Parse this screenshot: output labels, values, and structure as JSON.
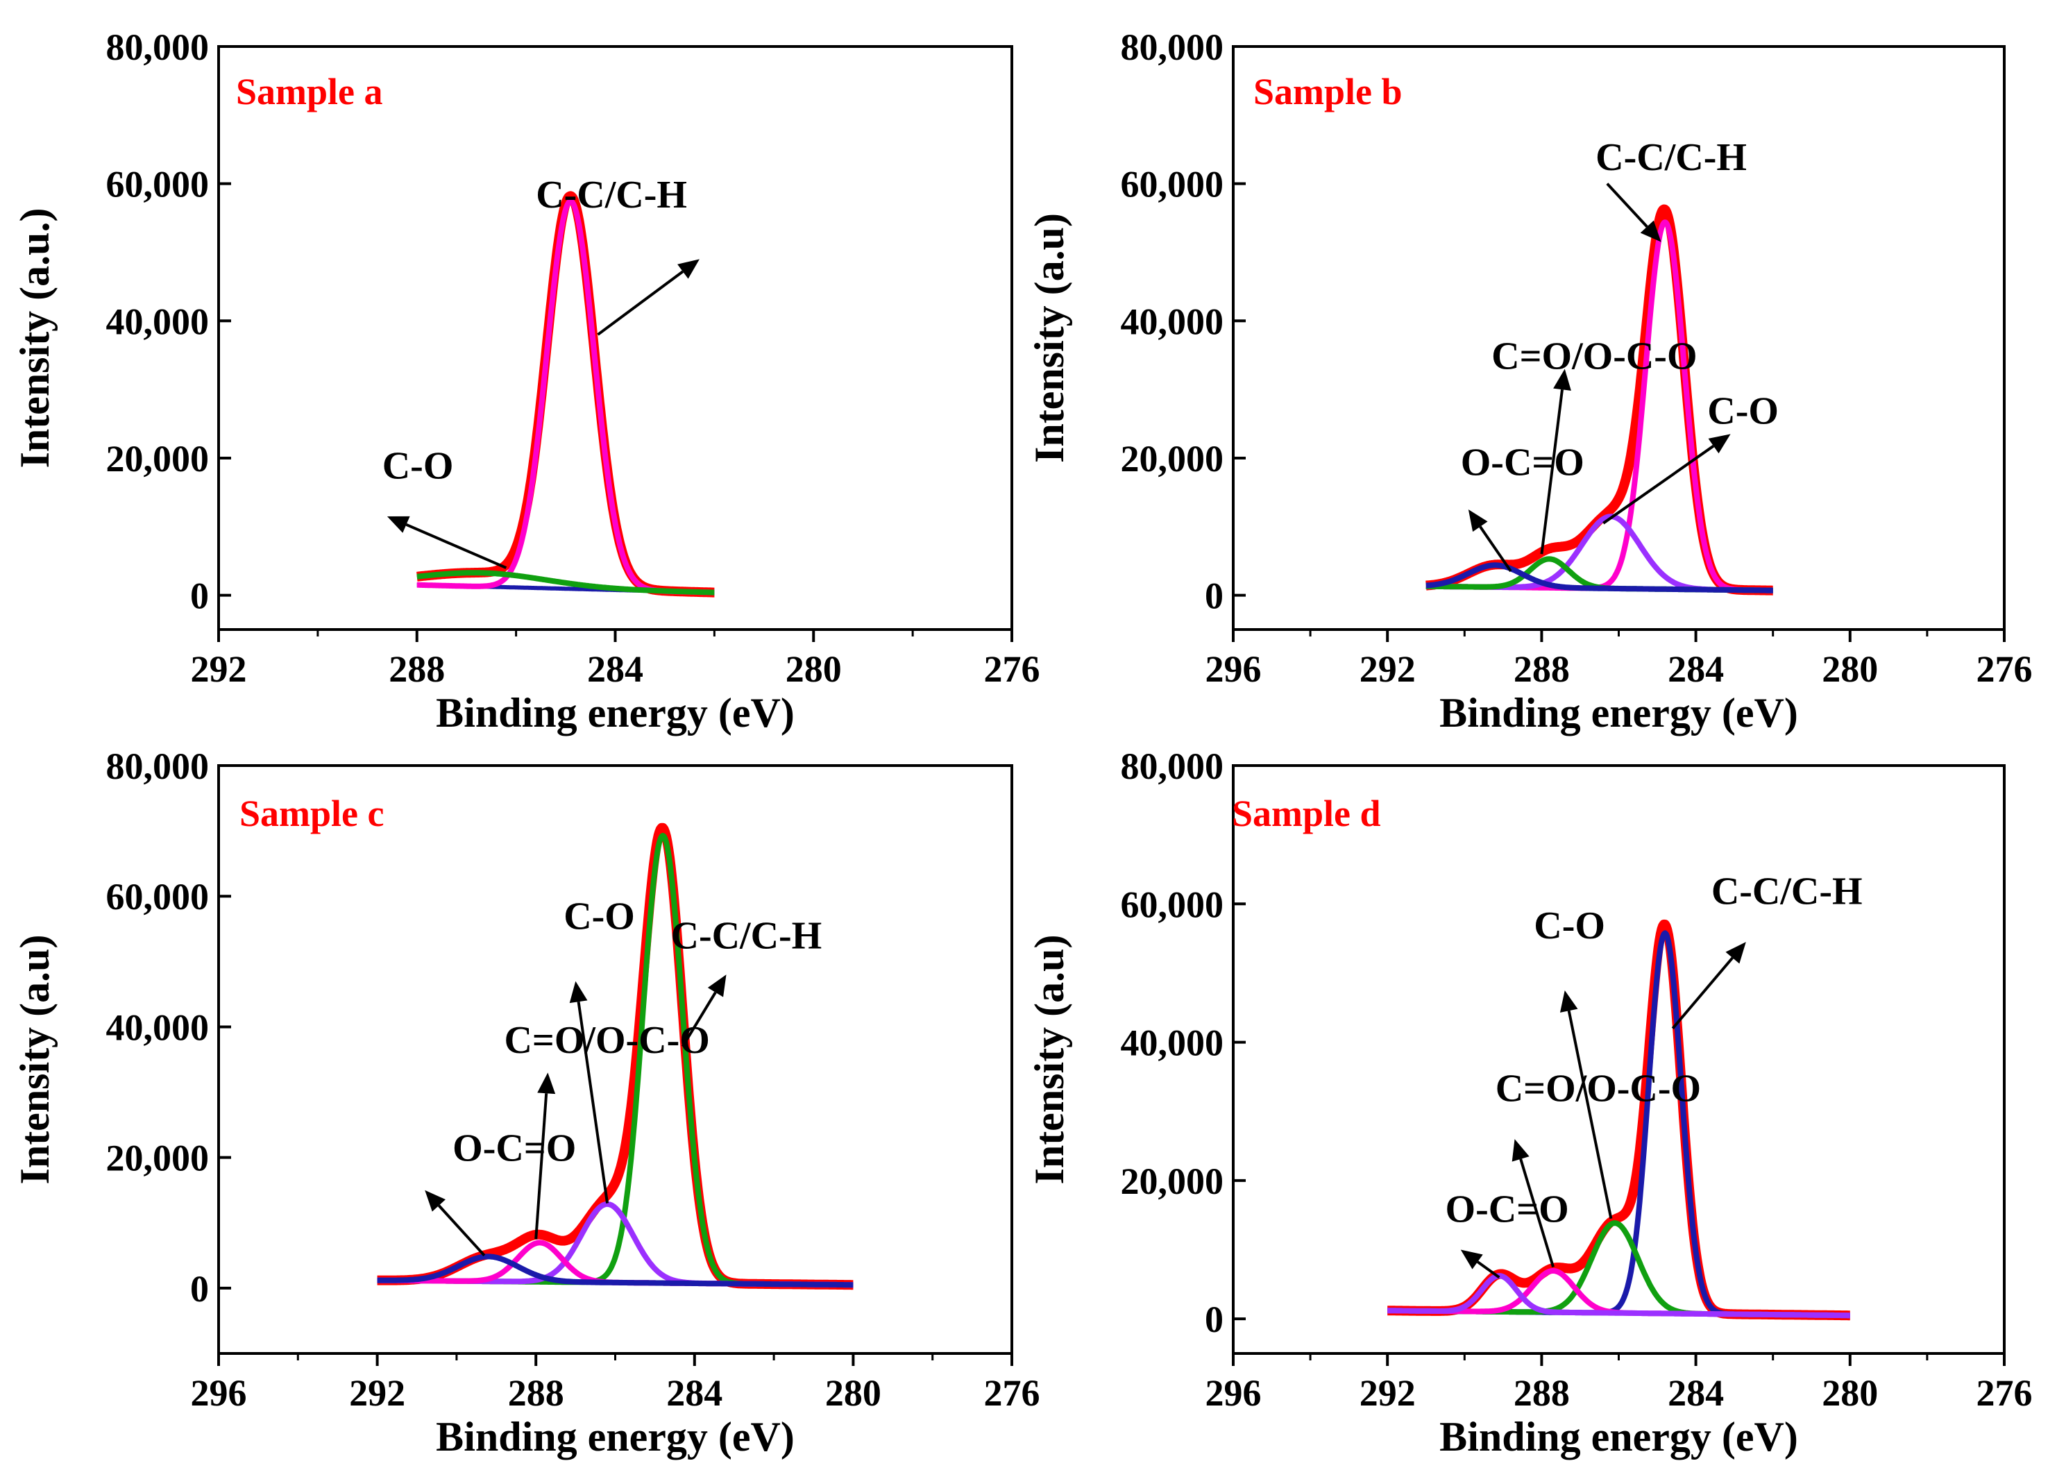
{
  "figure": {
    "colors": {
      "fit": "#ff0000",
      "sample_label": "#ff0000",
      "axis": "#000000"
    },
    "series_colors": {
      "pink": "#ff00cc",
      "green": "#10a010",
      "blue": "#1a1aaa",
      "violet": "#9b30ff"
    }
  },
  "chart_data": [
    {
      "type": "line",
      "title": "Sample a",
      "xlabel": "Binding energy (eV)",
      "ylabel": "Intensity (a.u.)",
      "xlim": [
        292,
        276
      ],
      "ylim": [
        -5000,
        80000
      ],
      "x_ticks": [
        292,
        288,
        284,
        280,
        276
      ],
      "x_tick_labels": [
        "292",
        "288",
        "284",
        "280",
        "276"
      ],
      "y_ticks": [
        0,
        20000,
        40000,
        60000,
        80000
      ],
      "y_tick_labels": [
        "0",
        "20,000",
        "40,000",
        "60,000",
        "80,000"
      ],
      "x_range": [
        288,
        282
      ],
      "background": {
        "start": 1500,
        "end": 400,
        "color": "blue"
      },
      "components": [
        {
          "name": "C-C/C-H",
          "center": 284.9,
          "amplitude": 56500,
          "sigma": 0.48,
          "color": "pink"
        },
        {
          "name": "C-O",
          "center": 286.7,
          "amplitude": 2000,
          "sigma": 1.3,
          "color": "green"
        }
      ],
      "peak_labels": [
        {
          "text": "C-C/C-H",
          "label_x": 285.6,
          "label_y": 56500,
          "arrow_from": [
            284.35,
            38000
          ],
          "arrow_to": [
            282.3,
            49000
          ]
        },
        {
          "text": "C-O",
          "label_x": 288.7,
          "label_y": 17000,
          "arrow_from": [
            286.2,
            4000
          ],
          "arrow_to": [
            288.6,
            11500
          ]
        }
      ]
    },
    {
      "type": "line",
      "title": "Sample b",
      "xlabel": "Binding energy (eV)",
      "ylabel": "Intensity (a.u)",
      "xlim": [
        296,
        276
      ],
      "ylim": [
        -5000,
        80000
      ],
      "x_ticks": [
        296,
        292,
        288,
        284,
        280,
        276
      ],
      "x_tick_labels": [
        "296",
        "292",
        "288",
        "284",
        "280",
        "276"
      ],
      "y_ticks": [
        0,
        20000,
        40000,
        60000,
        80000
      ],
      "y_tick_labels": [
        "0",
        "20,000",
        "40,000",
        "60,000",
        "80,000"
      ],
      "x_range": [
        291,
        282
      ],
      "background": {
        "start": 1300,
        "end": 700,
        "color": "violet"
      },
      "components": [
        {
          "name": "C-C/C-H",
          "center": 284.8,
          "amplitude": 53500,
          "sigma": 0.5,
          "color": "pink"
        },
        {
          "name": "C-O",
          "center": 286.2,
          "amplitude": 10500,
          "sigma": 0.75,
          "color": "violet"
        },
        {
          "name": "C=O/O-C-O",
          "center": 287.8,
          "amplitude": 4200,
          "sigma": 0.5,
          "color": "green"
        },
        {
          "name": "O-C=O",
          "center": 289.2,
          "amplitude": 3200,
          "sigma": 0.7,
          "color": "blue"
        }
      ],
      "peak_labels": [
        {
          "text": "C-C/C-H",
          "label_x": 286.6,
          "label_y": 62000,
          "arrow_from": [
            286.3,
            60000
          ],
          "arrow_to": [
            284.9,
            51500
          ]
        },
        {
          "text": "C-O",
          "label_x": 283.7,
          "label_y": 25000,
          "arrow_from": [
            286.4,
            10500
          ],
          "arrow_to": [
            283.1,
            23500
          ]
        },
        {
          "text": "C=O/O-C-O",
          "label_x": 289.3,
          "label_y": 33000,
          "arrow_from": [
            288.0,
            6000
          ],
          "arrow_to": [
            287.4,
            33000
          ]
        },
        {
          "text": "O-C=O",
          "label_x": 290.1,
          "label_y": 17500,
          "arrow_from": [
            288.8,
            3500
          ],
          "arrow_to": [
            289.9,
            12500
          ]
        }
      ]
    },
    {
      "type": "line",
      "title": "Sample c",
      "xlabel": "Binding energy (eV)",
      "ylabel": "Intensity (a.u)",
      "xlim": [
        296,
        276
      ],
      "ylim": [
        -10000,
        80000
      ],
      "x_ticks": [
        296,
        292,
        288,
        284,
        280,
        276
      ],
      "x_tick_labels": [
        "296",
        "292",
        "288",
        "284",
        "280",
        "276"
      ],
      "y_ticks": [
        0,
        20000,
        40000,
        60000,
        80000
      ],
      "y_tick_labels": [
        "0",
        "20,000",
        "40,000",
        "60,000",
        "80,000"
      ],
      "x_range": [
        292,
        280
      ],
      "background": {
        "start": 1200,
        "end": 500,
        "color": "violet"
      },
      "components": [
        {
          "name": "C-C/C-H",
          "center": 284.8,
          "amplitude": 68500,
          "sigma": 0.5,
          "color": "green"
        },
        {
          "name": "C-O",
          "center": 286.2,
          "amplitude": 12000,
          "sigma": 0.65,
          "color": "violet"
        },
        {
          "name": "C=O/O-C-O",
          "center": 287.9,
          "amplitude": 6000,
          "sigma": 0.55,
          "color": "pink"
        },
        {
          "name": "O-C=O",
          "center": 289.2,
          "amplitude": 3800,
          "sigma": 0.75,
          "color": "blue"
        }
      ],
      "peak_labels": [
        {
          "text": "C-C/C-H",
          "label_x": 284.6,
          "label_y": 52000,
          "arrow_from": [
            284.3,
            37000
          ],
          "arrow_to": [
            283.2,
            48000
          ]
        },
        {
          "text": "C-O",
          "label_x": 287.3,
          "label_y": 55000,
          "arrow_from": [
            286.2,
            13000
          ],
          "arrow_to": [
            287.0,
            47000
          ]
        },
        {
          "text": "C=O/O-C-O",
          "label_x": 288.8,
          "label_y": 36000,
          "arrow_from": [
            288.0,
            7500
          ],
          "arrow_to": [
            287.7,
            33000
          ]
        },
        {
          "text": "O-C=O",
          "label_x": 290.1,
          "label_y": 19500,
          "arrow_from": [
            289.3,
            5000
          ],
          "arrow_to": [
            290.8,
            15000
          ]
        }
      ]
    },
    {
      "type": "line",
      "title": "Sample d",
      "xlabel": "Binding energy (eV)",
      "ylabel": "Intensity (a.u)",
      "xlim": [
        296,
        276
      ],
      "ylim": [
        -5000,
        80000
      ],
      "x_ticks": [
        296,
        292,
        288,
        284,
        280,
        276
      ],
      "x_tick_labels": [
        "296",
        "292",
        "288",
        "284",
        "280",
        "276"
      ],
      "y_ticks": [
        0,
        20000,
        40000,
        60000,
        80000
      ],
      "y_tick_labels": [
        "0",
        "20,000",
        "40,000",
        "60,000",
        "80,000"
      ],
      "x_range": [
        292,
        280
      ],
      "background": {
        "start": 1200,
        "end": 500,
        "color": "violet"
      },
      "components": [
        {
          "name": "C-C/C-H",
          "center": 284.8,
          "amplitude": 55000,
          "sigma": 0.42,
          "color": "blue"
        },
        {
          "name": "C-O",
          "center": 286.1,
          "amplitude": 13000,
          "sigma": 0.6,
          "color": "green"
        },
        {
          "name": "C=O/O-C-O",
          "center": 287.7,
          "amplitude": 6000,
          "sigma": 0.55,
          "color": "pink"
        },
        {
          "name": "O-C=O",
          "center": 289.1,
          "amplitude": 5200,
          "sigma": 0.45,
          "color": "violet"
        }
      ],
      "peak_labels": [
        {
          "text": "C-C/C-H",
          "label_x": 283.6,
          "label_y": 60000,
          "arrow_from": [
            284.6,
            42000
          ],
          "arrow_to": [
            282.7,
            54500
          ]
        },
        {
          "text": "C-O",
          "label_x": 288.2,
          "label_y": 55000,
          "arrow_from": [
            286.2,
            14500
          ],
          "arrow_to": [
            287.4,
            47500
          ]
        },
        {
          "text": "C=O/O-C-O",
          "label_x": 289.2,
          "label_y": 31500,
          "arrow_from": [
            287.7,
            7500
          ],
          "arrow_to": [
            288.7,
            26000
          ]
        },
        {
          "text": "O-C=O",
          "label_x": 290.5,
          "label_y": 14000,
          "arrow_from": [
            289.1,
            6000
          ],
          "arrow_to": [
            290.1,
            10000
          ]
        }
      ]
    }
  ]
}
